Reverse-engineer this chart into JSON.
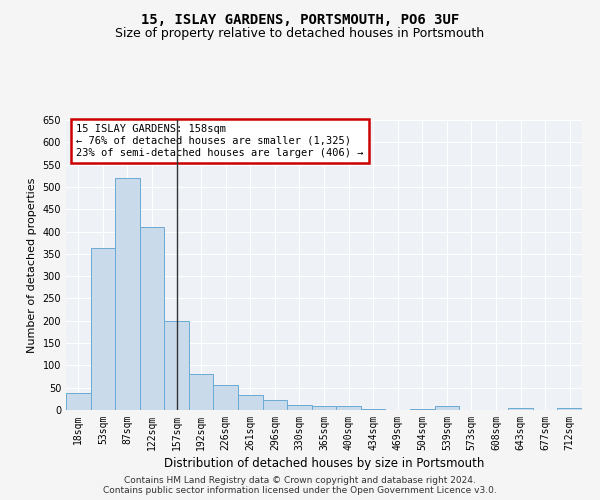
{
  "title": "15, ISLAY GARDENS, PORTSMOUTH, PO6 3UF",
  "subtitle": "Size of property relative to detached houses in Portsmouth",
  "xlabel": "Distribution of detached houses by size in Portsmouth",
  "ylabel": "Number of detached properties",
  "categories": [
    "18sqm",
    "53sqm",
    "87sqm",
    "122sqm",
    "157sqm",
    "192sqm",
    "226sqm",
    "261sqm",
    "296sqm",
    "330sqm",
    "365sqm",
    "400sqm",
    "434sqm",
    "469sqm",
    "504sqm",
    "539sqm",
    "573sqm",
    "608sqm",
    "643sqm",
    "677sqm",
    "712sqm"
  ],
  "values": [
    37,
    363,
    520,
    410,
    200,
    80,
    55,
    33,
    22,
    11,
    8,
    8,
    2,
    0,
    2,
    8,
    0,
    0,
    5,
    0,
    5
  ],
  "bar_color": "#c9daea",
  "bar_edge_color": "#6aaad4",
  "marker_index": 4,
  "marker_line_color": "#333333",
  "annotation_line1": "15 ISLAY GARDENS: 158sqm",
  "annotation_line2": "← 76% of detached houses are smaller (1,325)",
  "annotation_line3": "23% of semi-detached houses are larger (406) →",
  "annotation_box_color": "#ffffff",
  "annotation_box_edge_color": "#cc0000",
  "ylim": [
    0,
    650
  ],
  "yticks": [
    0,
    50,
    100,
    150,
    200,
    250,
    300,
    350,
    400,
    450,
    500,
    550,
    600,
    650
  ],
  "background_color": "#eef2f7",
  "grid_color": "#ffffff",
  "footer_line1": "Contains HM Land Registry data © Crown copyright and database right 2024.",
  "footer_line2": "Contains public sector information licensed under the Open Government Licence v3.0.",
  "title_fontsize": 10,
  "subtitle_fontsize": 9,
  "xlabel_fontsize": 8.5,
  "ylabel_fontsize": 8,
  "tick_fontsize": 7,
  "annotation_fontsize": 7.5,
  "footer_fontsize": 6.5
}
